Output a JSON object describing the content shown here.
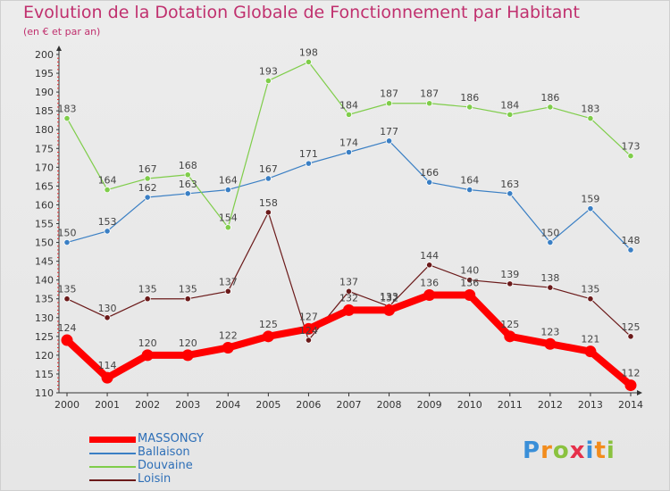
{
  "header": {
    "title": "Evolution de la Dotation Globale de Fonctionnement par Habitant",
    "subtitle": "(en € et par an)"
  },
  "logo": {
    "text": "Proxiti",
    "letters": [
      "P",
      "r",
      "o",
      "x",
      "i",
      "t",
      "i"
    ],
    "colors": [
      "#3a8fd8",
      "#f28c1c",
      "#8ac23f",
      "#e6304a",
      "#3a8fd8",
      "#f28c1c",
      "#8ac23f"
    ]
  },
  "chart_data": {
    "type": "line",
    "x": [
      "2000",
      "2001",
      "2002",
      "2003",
      "2004",
      "2005",
      "2006",
      "2007",
      "2008",
      "2009",
      "2010",
      "2011",
      "2012",
      "2013",
      "2014"
    ],
    "ylim": [
      110,
      200
    ],
    "yticks": [
      110,
      115,
      120,
      125,
      130,
      135,
      140,
      145,
      150,
      155,
      160,
      165,
      170,
      175,
      180,
      185,
      190,
      195,
      200
    ],
    "grid": false,
    "legend_position": "bottom-left",
    "series": [
      {
        "name": "MASSONGY",
        "color": "#ff0000",
        "emphasis": true,
        "values": [
          124,
          114,
          120,
          120,
          122,
          125,
          127,
          132,
          132,
          136,
          136,
          125,
          123,
          121,
          112
        ]
      },
      {
        "name": "Ballaison",
        "color": "#3a7fc4",
        "values": [
          150,
          153,
          162,
          163,
          164,
          167,
          171,
          174,
          177,
          166,
          164,
          163,
          150,
          159,
          148
        ]
      },
      {
        "name": "Douvaine",
        "color": "#7fcd4a",
        "values": [
          183,
          164,
          167,
          168,
          154,
          193,
          198,
          184,
          187,
          187,
          186,
          184,
          186,
          183,
          173
        ]
      },
      {
        "name": "Loisin",
        "color": "#6b1a1a",
        "values": [
          135,
          130,
          135,
          135,
          137,
          158,
          124,
          137,
          133,
          144,
          140,
          139,
          138,
          135,
          125
        ]
      }
    ]
  }
}
